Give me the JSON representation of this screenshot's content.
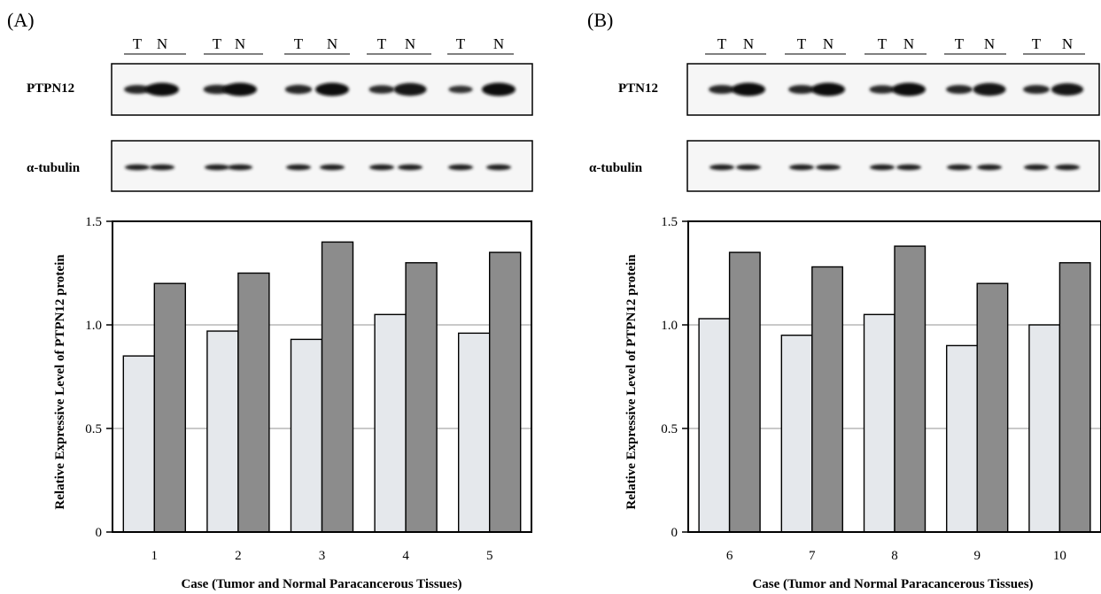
{
  "panels": [
    {
      "id": "A",
      "label": "(A)",
      "lane_labels": [
        "T",
        "N"
      ],
      "blots": [
        {
          "protein": "PTPN12",
          "band_intensity": [
            0.55,
            1.0,
            0.6,
            1.0,
            0.58,
            1.0,
            0.5,
            0.95,
            0.4,
            1.0
          ]
        },
        {
          "protein": "α-tubulin",
          "band_intensity": [
            0.8,
            0.8,
            0.8,
            0.8,
            0.8,
            0.8,
            0.8,
            0.8,
            0.8,
            0.8
          ]
        }
      ],
      "chart_data": {
        "type": "bar",
        "categories": [
          "1",
          "2",
          "3",
          "4",
          "5"
        ],
        "series": [
          {
            "values": [
              0.85,
              0.97,
              0.93,
              1.05,
              0.96
            ],
            "color": "#e5e8ec"
          },
          {
            "values": [
              1.2,
              1.25,
              1.4,
              1.3,
              1.35
            ],
            "color": "#8c8c8c"
          }
        ],
        "xlabel": "Case (Tumor and Normal Paracancerous Tissues)",
        "ylabel": "Relative Expressive Level of PTPN12 protein",
        "ylim": [
          0,
          1.5
        ],
        "yticks": [
          "0",
          "0.5",
          "1.0",
          "1.5"
        ],
        "grid": true
      }
    },
    {
      "id": "B",
      "label": "(B)",
      "lane_labels": [
        "T",
        "N"
      ],
      "blots": [
        {
          "protein": "PTN12",
          "band_intensity": [
            0.55,
            1.0,
            0.55,
            1.0,
            0.5,
            1.0,
            0.55,
            0.95,
            0.55,
            0.9
          ]
        },
        {
          "protein": "α-tubulin",
          "band_intensity": [
            0.8,
            0.8,
            0.8,
            0.8,
            0.8,
            0.8,
            0.8,
            0.8,
            0.8,
            0.8
          ]
        }
      ],
      "chart_data": {
        "type": "bar",
        "categories": [
          "6",
          "7",
          "8",
          "9",
          "10"
        ],
        "series": [
          {
            "values": [
              1.03,
              0.95,
              1.05,
              0.9,
              1.0
            ],
            "color": "#e5e8ec"
          },
          {
            "values": [
              1.35,
              1.28,
              1.38,
              1.2,
              1.3
            ],
            "color": "#8c8c8c"
          }
        ],
        "xlabel": "Case (Tumor and Normal Paracancerous Tissues)",
        "ylabel": "Relative Expressive Level of PTPN12 protein",
        "ylim": [
          0,
          1.5
        ],
        "yticks": [
          "0",
          "0.5",
          "1.0",
          "1.5"
        ],
        "grid": true
      }
    }
  ]
}
